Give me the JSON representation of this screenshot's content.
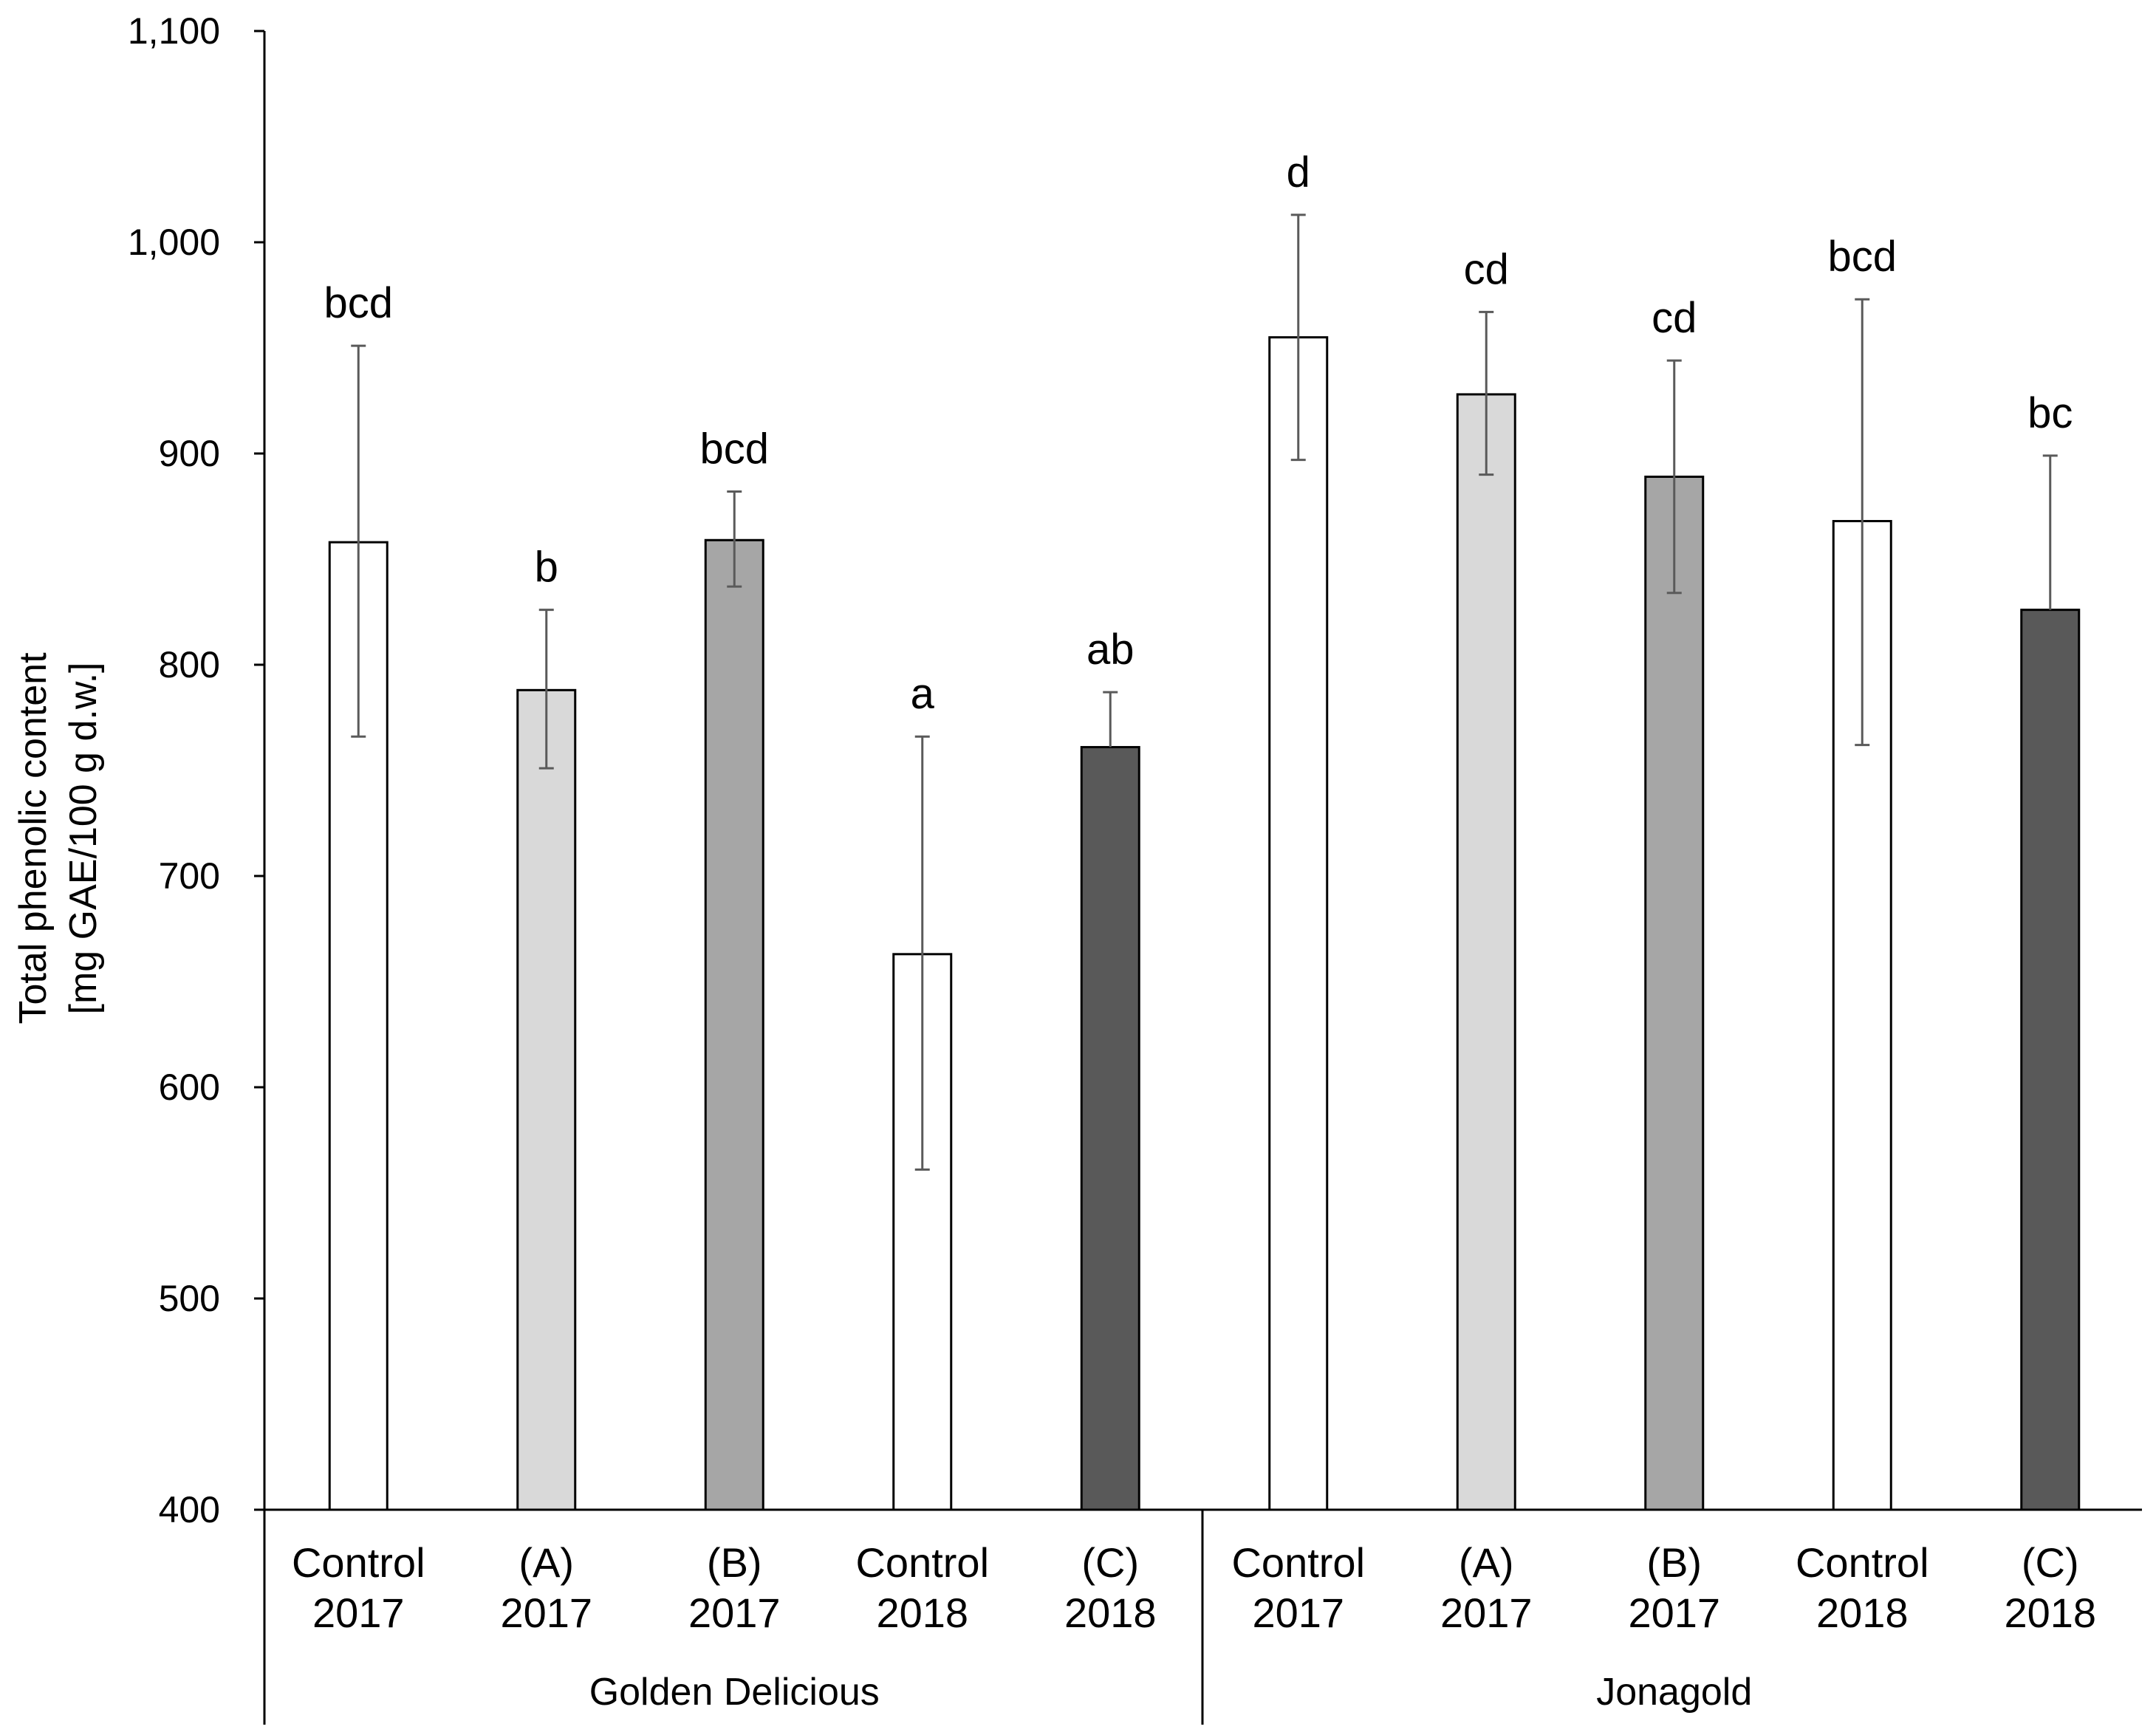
{
  "chart_data": {
    "type": "bar",
    "ylabel_lines": [
      "Total phenolic  content",
      "[mg GAE/100 g d.w.]"
    ],
    "ylim": [
      400,
      1100
    ],
    "yticks": [
      400,
      500,
      600,
      700,
      800,
      900,
      1000,
      1100
    ],
    "ytick_labels": [
      "400",
      "500",
      "600",
      "700",
      "800",
      "900",
      "1,000",
      "1,100"
    ],
    "groups": [
      {
        "name": "Golden Delicious",
        "bars": [
          {
            "line1": "Control",
            "line2": "2017",
            "value": 858,
            "err_low": 766,
            "err_high": 951,
            "letters": "bcd",
            "color": "#ffffff"
          },
          {
            "line1": "(A)",
            "line2": "2017",
            "value": 788,
            "err_low": 751,
            "err_high": 826,
            "letters": "b",
            "color": "#d9d9d9"
          },
          {
            "line1": "(B)",
            "line2": "2017",
            "value": 859,
            "err_low": 837,
            "err_high": 882,
            "letters": "bcd",
            "color": "#a6a6a6"
          },
          {
            "line1": "Control",
            "line2": "2018",
            "value": 663,
            "err_low": 561,
            "err_high": 766,
            "letters": "a",
            "color": "#ffffff"
          },
          {
            "line1": "(C)",
            "line2": "2018",
            "value": 761,
            "err_low": 761,
            "err_high": 787,
            "letters": "ab",
            "color": "#595959"
          }
        ]
      },
      {
        "name": "Jonagold",
        "bars": [
          {
            "line1": "Control",
            "line2": "2017",
            "value": 955,
            "err_low": 897,
            "err_high": 1013,
            "letters": "d",
            "color": "#ffffff"
          },
          {
            "line1": "(A)",
            "line2": "2017",
            "value": 928,
            "err_low": 890,
            "err_high": 967,
            "letters": "cd",
            "color": "#d9d9d9"
          },
          {
            "line1": "(B)",
            "line2": "2017",
            "value": 889,
            "err_low": 834,
            "err_high": 944,
            "letters": "cd",
            "color": "#a6a6a6"
          },
          {
            "line1": "Control",
            "line2": "2018",
            "value": 868,
            "err_low": 762,
            "err_high": 973,
            "letters": "bcd",
            "color": "#ffffff"
          },
          {
            "line1": "(C)",
            "line2": "2018",
            "value": 826,
            "err_low": 826,
            "err_high": 899,
            "letters": "bc",
            "color": "#595959"
          }
        ]
      }
    ]
  }
}
